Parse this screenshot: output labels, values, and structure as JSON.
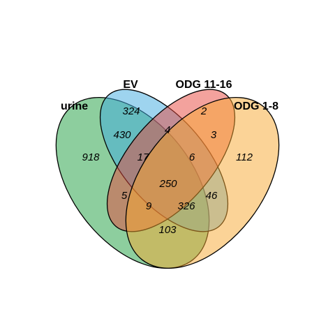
{
  "sets": [
    {
      "id": "urine",
      "label": "urine",
      "color": "#1b9e3e"
    },
    {
      "id": "ev",
      "label": "EV",
      "color": "#3da9e0"
    },
    {
      "id": "odg_11_16",
      "label": "ODG 11-16",
      "color": "#e8453c"
    },
    {
      "id": "odg_1_8",
      "label": "ODG 1-8",
      "color": "#f7a730"
    }
  ],
  "regions": {
    "urine_only": "918",
    "ev_only": "324",
    "odg_11_16_only": "2",
    "odg_1_8_only": "112",
    "urine_ev": "430",
    "ev_odg_11_16": "4",
    "odg_11_16_odg_1_8": "3",
    "urine_ev_odg_11_16": "17",
    "ev_odg_11_16_odg_1_8": "6",
    "urine_odg_11_16": "5",
    "all_four": "250",
    "ev_odg_1_8": "46",
    "urine_odg_11_16_odg_1_8": "9",
    "urine_ev_odg_1_8": "326",
    "urine_odg_1_8": "103"
  }
}
